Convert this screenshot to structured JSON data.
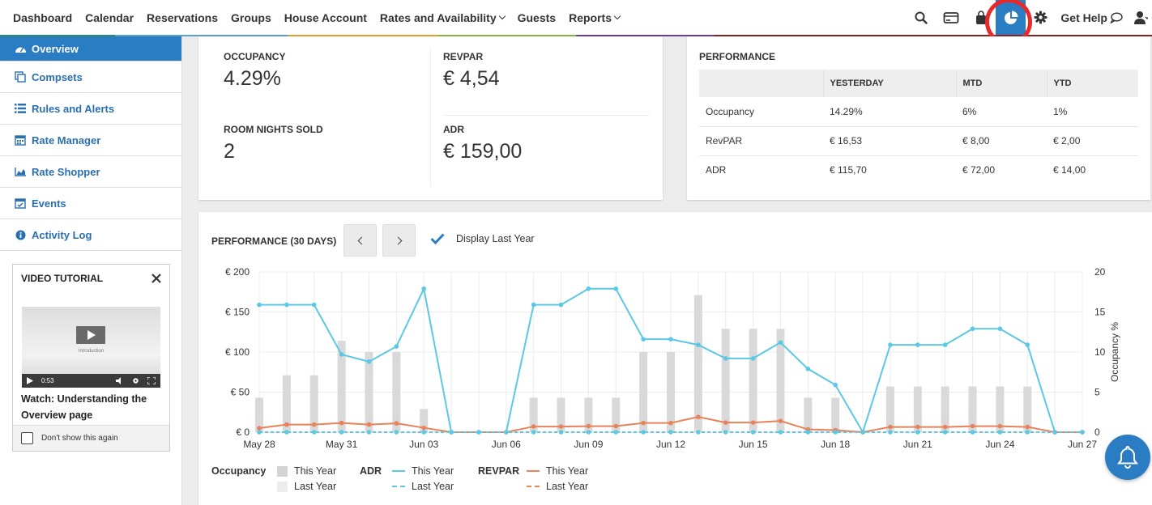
{
  "nav": {
    "items": [
      {
        "label": "Dashboard",
        "dropdown": false
      },
      {
        "label": "Calendar",
        "dropdown": false
      },
      {
        "label": "Reservations",
        "dropdown": false
      },
      {
        "label": "Groups",
        "dropdown": false
      },
      {
        "label": "House Account",
        "dropdown": false
      },
      {
        "label": "Rates and Availability",
        "dropdown": true
      },
      {
        "label": "Guests",
        "dropdown": false
      },
      {
        "label": "Reports",
        "dropdown": true
      }
    ],
    "right_icons": [
      "search-icon",
      "card-reader-icon",
      "shopping-bag-icon",
      "pie-chart-icon",
      "gear-icon"
    ],
    "get_help": "Get Help",
    "accent": "#2a7dc3"
  },
  "sidebar": {
    "items": [
      {
        "label": "Overview",
        "icon": "dashboard-icon",
        "active": true
      },
      {
        "label": "Compsets",
        "icon": "copy-icon",
        "active": false
      },
      {
        "label": "Rules and Alerts",
        "icon": "list-icon",
        "active": false
      },
      {
        "label": "Rate Manager",
        "icon": "calendar-icon",
        "active": false
      },
      {
        "label": "Rate Shopper",
        "icon": "area-chart-icon",
        "active": false
      },
      {
        "label": "Events",
        "icon": "calendar-check-icon",
        "active": false
      },
      {
        "label": "Activity Log",
        "icon": "info-icon",
        "active": false
      }
    ],
    "video": {
      "title": "VIDEO TUTORIAL",
      "intro": "Introduction",
      "time": "0:53",
      "caption": "Watch: Understanding the Overview page",
      "dont_show": "Don't show this again"
    }
  },
  "kpis": [
    {
      "label": "OCCUPANCY",
      "value": "4.29%"
    },
    {
      "label": "REVPAR",
      "value": "€ 4,54"
    },
    {
      "label": "ROOM NIGHTS SOLD",
      "value": "2"
    },
    {
      "label": "ADR",
      "value": "€ 159,00"
    }
  ],
  "performance": {
    "title": "PERFORMANCE",
    "columns": [
      "",
      "YESTERDAY",
      "MTD",
      "YTD"
    ],
    "rows": [
      [
        "Occupancy",
        "14.29%",
        "6%",
        "1%"
      ],
      [
        "RevPAR",
        "€ 16,53",
        "€ 8,00",
        "€ 2,00"
      ],
      [
        "ADR",
        "€ 115,70",
        "€ 72,00",
        "€ 14,00"
      ]
    ]
  },
  "chart_card": {
    "title": "PERFORMANCE (30 DAYS)",
    "display_last_year": "Display Last Year"
  },
  "chart_data": {
    "type": "bar",
    "title": "PERFORMANCE (30 DAYS)",
    "left_ticks": [
      "€ 200",
      "€ 150",
      "€ 100",
      "€ 50",
      "€ 0"
    ],
    "right_ticks": [
      "20",
      "15",
      "10",
      "5",
      "0"
    ],
    "ylabel_right": "Occupancy %",
    "ylim_left": [
      0,
      200
    ],
    "ylim_right": [
      0,
      20
    ],
    "x_labels": [
      "May 28",
      "May 31",
      "Jun 03",
      "Jun 06",
      "Jun 09",
      "Jun 12",
      "Jun 15",
      "Jun 18",
      "Jun 21",
      "Jun 24",
      "Jun 27"
    ],
    "x_label_every": 3,
    "num_days": 31,
    "grid": true,
    "series": [
      {
        "name": "Occupancy This Year",
        "axis": "right",
        "kind": "bar",
        "color": "#d9d9d9",
        "values": [
          4.3,
          7.1,
          7.1,
          11.4,
          10,
          10,
          2.9,
          0,
          0,
          0,
          4.3,
          4.3,
          4.3,
          4.3,
          10,
          10,
          17.1,
          12.9,
          12.9,
          12.9,
          4.3,
          4.3,
          0,
          5.7,
          5.7,
          5.7,
          5.7,
          5.7,
          5.7,
          0,
          0
        ]
      },
      {
        "name": "ADR This Year",
        "axis": "left",
        "kind": "line",
        "color": "#5bc8e4",
        "values": [
          159,
          159,
          159,
          97,
          88,
          107,
          179,
          0,
          0,
          0,
          159,
          159,
          179,
          179,
          116,
          116,
          109,
          92,
          92,
          112,
          79,
          59,
          0,
          109,
          109,
          109,
          129,
          129,
          109,
          0,
          0
        ]
      },
      {
        "name": "RevPAR This Year",
        "axis": "left",
        "kind": "line",
        "color": "#e8825a",
        "values": [
          5,
          9.5,
          9.5,
          11.5,
          9.5,
          11,
          5.5,
          0,
          0,
          0,
          7,
          7,
          7.5,
          7.5,
          11.5,
          11.5,
          19,
          12,
          12,
          14,
          3.5,
          2.5,
          0,
          6.5,
          6.5,
          6.5,
          7.5,
          7.5,
          6.5,
          0,
          0
        ]
      },
      {
        "name": "ADR Last Year",
        "axis": "left",
        "kind": "line",
        "color": "#5bc8e4",
        "values": [
          0,
          0,
          0,
          0,
          0,
          0,
          0,
          0,
          0,
          0,
          0,
          0,
          0,
          0,
          0,
          0,
          0,
          0,
          0,
          0,
          0,
          0,
          0,
          0,
          0,
          0,
          0,
          0,
          0,
          0,
          0
        ]
      }
    ]
  },
  "legend": {
    "groups": [
      {
        "title": "Occupancy",
        "this_year": "This Year",
        "last_year": "Last Year"
      },
      {
        "title": "ADR",
        "this_year": "This Year",
        "last_year": "Last Year"
      },
      {
        "title": "REVPAR",
        "this_year": "This Year",
        "last_year": "Last Year"
      }
    ]
  }
}
